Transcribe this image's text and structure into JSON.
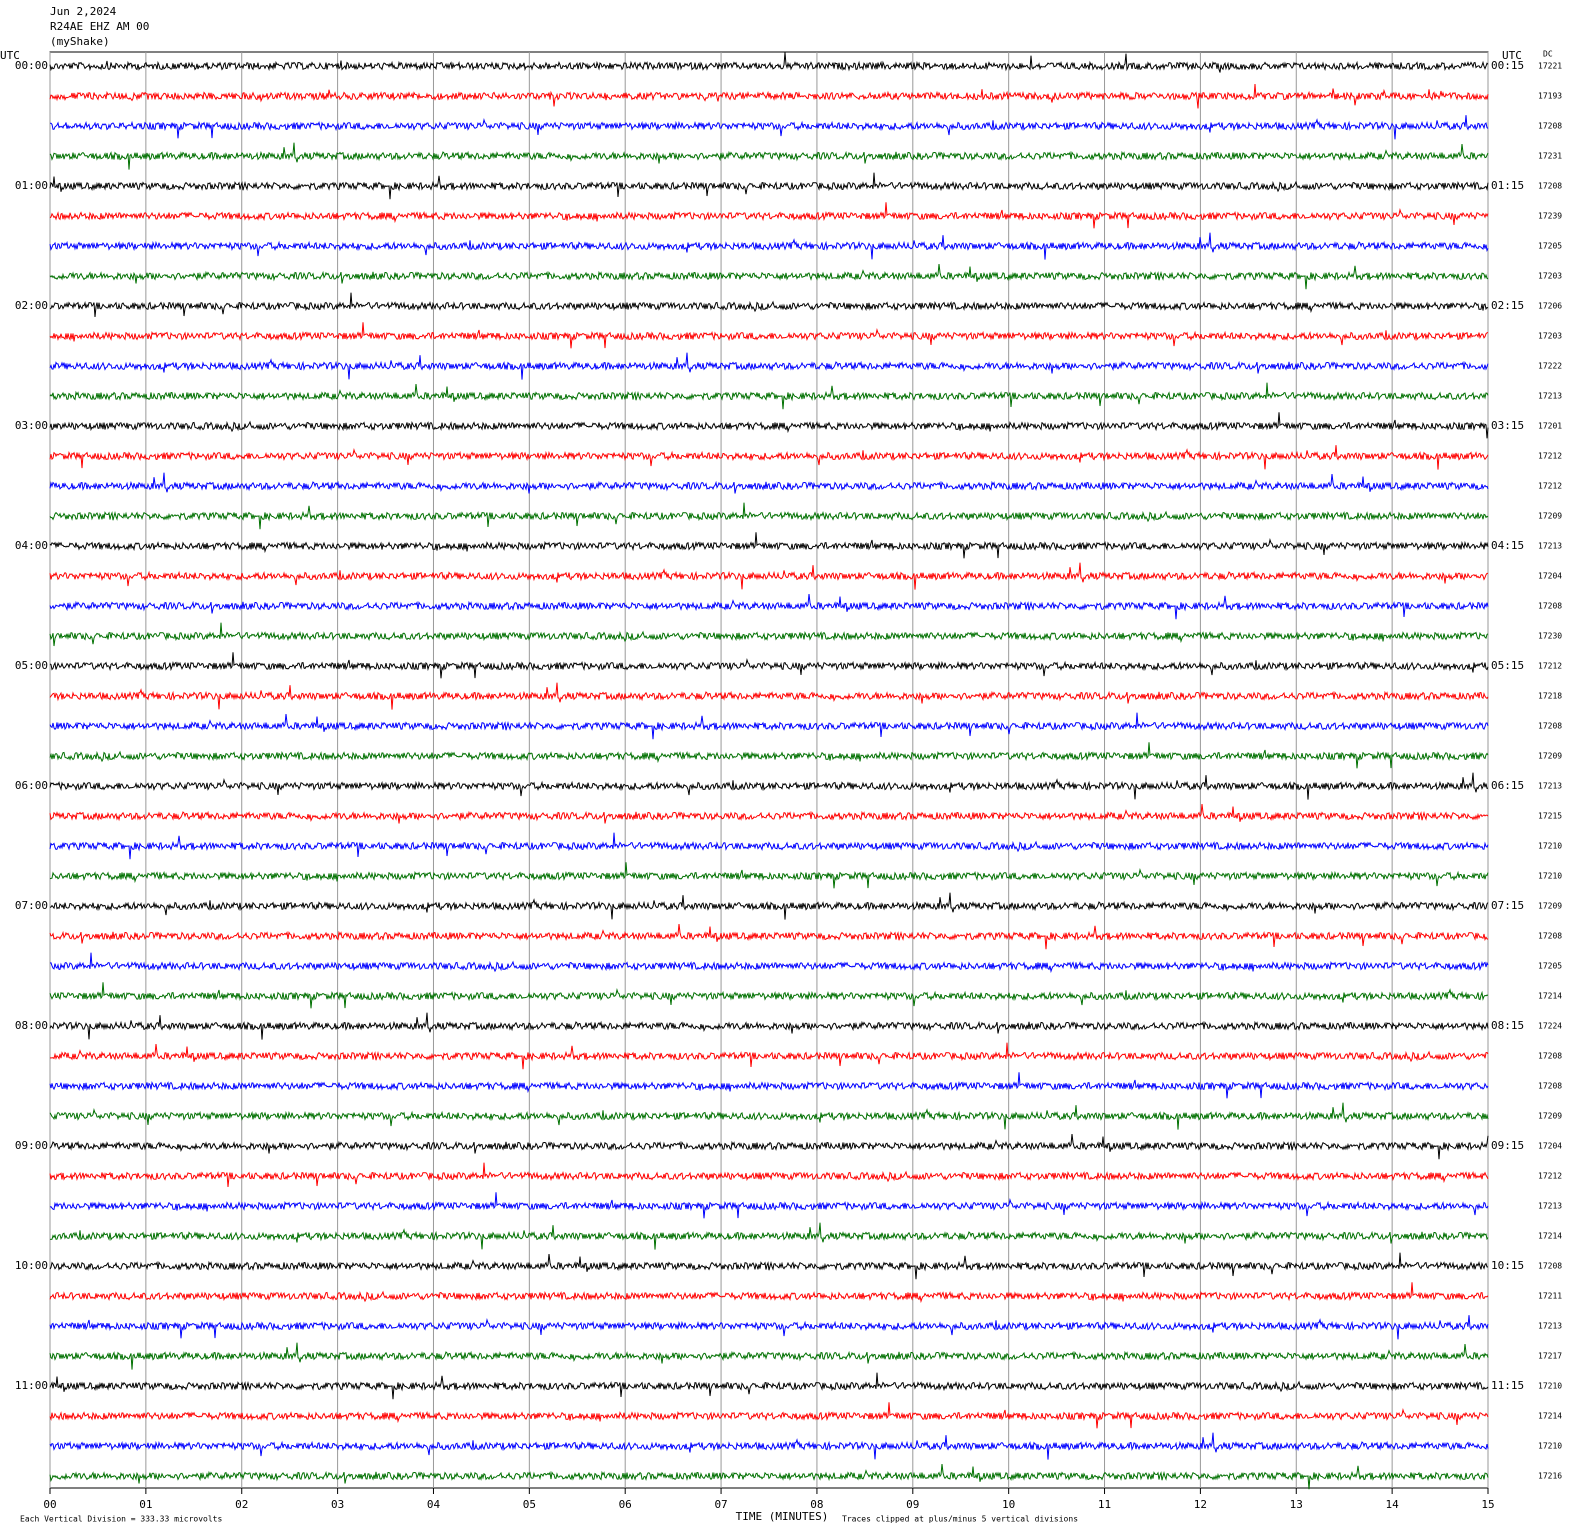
{
  "chart_data": {
    "type": "helicorder",
    "title_lines": [
      "Jun 2,2024",
      "R24AE EHZ AM 00",
      "(myShake)"
    ],
    "left_axis_label": "UTC",
    "right_axis_label": "UTC",
    "dc_label": "DC",
    "left_labels": [
      "00:00",
      "01:00",
      "02:00",
      "03:00",
      "04:00",
      "05:00",
      "06:00",
      "07:00",
      "08:00",
      "09:00",
      "10:00",
      "11:00"
    ],
    "right_labels": [
      "00:15",
      "01:15",
      "02:15",
      "03:15",
      "04:15",
      "05:15",
      "06:15",
      "07:15",
      "08:15",
      "09:15",
      "10:15",
      "11:15"
    ],
    "dc_values": [
      17221,
      17193,
      17208,
      17231,
      17208,
      17239,
      17205,
      17203,
      17206,
      17203,
      17222,
      17213,
      17201,
      17212,
      17212,
      17209,
      17213,
      17204,
      17208,
      17230,
      17212,
      17218,
      17208,
      17209,
      17213,
      17215,
      17210,
      17210,
      17209,
      17208,
      17205,
      17214,
      17224,
      17208,
      17208,
      17209,
      17204,
      17212,
      17213,
      17214,
      17208,
      17211,
      17213,
      17217,
      17210,
      17214,
      17210,
      17216
    ],
    "colors": [
      "#000000",
      "#ff0000",
      "#0000ff",
      "#007000"
    ],
    "xlim": [
      0,
      15
    ],
    "xticks": [
      {
        "value": 0,
        "label": "00"
      },
      {
        "value": 1,
        "label": "01"
      },
      {
        "value": 2,
        "label": "02"
      },
      {
        "value": 3,
        "label": "03"
      },
      {
        "value": 4,
        "label": "04"
      },
      {
        "value": 5,
        "label": "05"
      },
      {
        "value": 6,
        "label": "06"
      },
      {
        "value": 7,
        "label": "07"
      },
      {
        "value": 8,
        "label": "08"
      },
      {
        "value": 9,
        "label": "09"
      },
      {
        "value": 10,
        "label": "10"
      },
      {
        "value": 11,
        "label": "11"
      },
      {
        "value": 12,
        "label": "12"
      },
      {
        "value": 13,
        "label": "13"
      },
      {
        "value": 14,
        "label": "14"
      },
      {
        "value": 15,
        "label": "15"
      }
    ],
    "xlabel": "TIME (MINUTES)",
    "footnote_left": "Each Vertical Division =  333.33 microvolts",
    "footnote_right": "Traces clipped at plus/minus 5 vertical divisions",
    "grid": true
  }
}
